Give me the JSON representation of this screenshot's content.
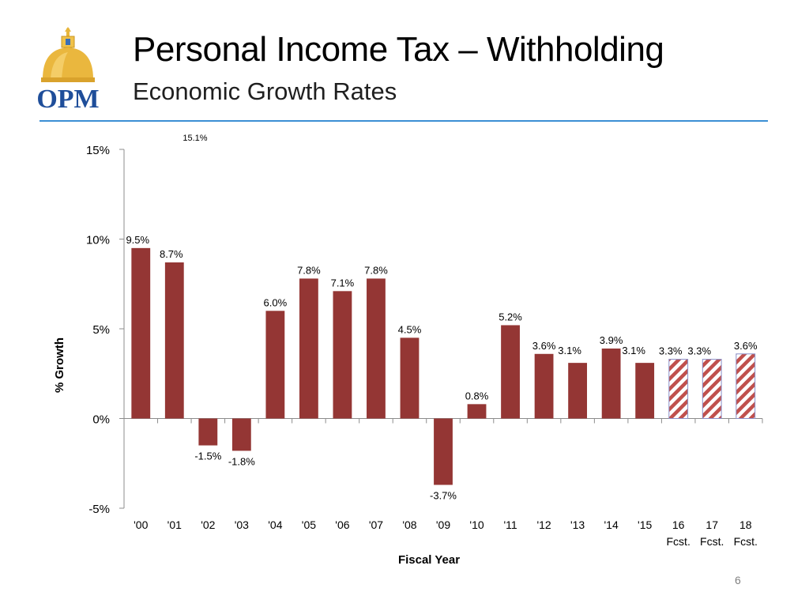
{
  "slide": {
    "title": "Personal Income Tax – Withholding",
    "subtitle": "Economic Growth Rates",
    "page_number": "6",
    "logo_text": "OPM"
  },
  "colors": {
    "bar": "#943634",
    "forecast_hatch": "#c0504d",
    "rule": "#3b8fd4",
    "logo_gold": "#e8b63c",
    "logo_blue": "#1f4e9a"
  },
  "chart_data": {
    "type": "bar",
    "title": "Economic Growth Rates",
    "xlabel": "Fiscal Year",
    "ylabel": "% Growth",
    "ylim": [
      -5,
      15
    ],
    "yticks": [
      -5,
      0,
      5,
      10,
      15
    ],
    "ytick_labels": [
      "-5%",
      "0%",
      "5%",
      "10%",
      "15%"
    ],
    "categories": [
      "'00",
      "'01",
      "'02",
      "'03",
      "'04",
      "'05",
      "'06",
      "'07",
      "'08",
      "'09",
      "'10",
      "'11",
      "'12",
      "'13",
      "'14",
      "'15",
      "16\nFcst.",
      "17\nFcst.",
      "18\nFcst."
    ],
    "values": [
      9.5,
      8.7,
      -1.5,
      -1.8,
      6.0,
      7.8,
      7.1,
      7.8,
      4.5,
      -3.7,
      0.8,
      5.2,
      3.6,
      3.1,
      3.9,
      3.1,
      3.3,
      3.3,
      3.6
    ],
    "data_labels": [
      "9.5%",
      "8.7%",
      "-1.5%",
      "-1.8%",
      "6.0%",
      "7.8%",
      "7.1%",
      "7.8%",
      "4.5%",
      "-3.7%",
      "0.8%",
      "5.2%",
      "3.6%",
      "3.1%",
      "3.9%",
      "3.1%",
      "3.3%",
      "3.3%",
      "3.6%"
    ],
    "forecast": [
      false,
      false,
      false,
      false,
      false,
      false,
      false,
      false,
      false,
      false,
      false,
      false,
      false,
      false,
      false,
      false,
      true,
      true,
      true
    ],
    "annotations": [
      {
        "text": "15.1%"
      }
    ]
  }
}
